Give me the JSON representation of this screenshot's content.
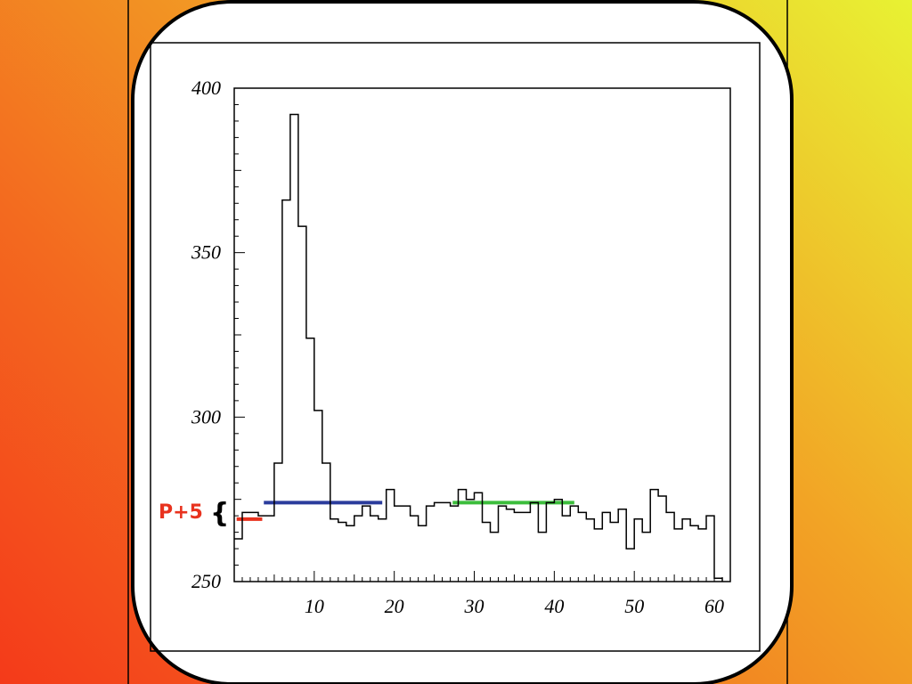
{
  "colors": {
    "background_bottom_left": "#f43a1a",
    "background_top_right": "#e8f233",
    "panel": "#ffffff",
    "axis": "#000000",
    "annotation": "#e8321e",
    "blue_level": "#2b3c9c",
    "green_level": "#3cbd3c",
    "red_level": "#e8321e"
  },
  "annotation": {
    "label": "P+5",
    "brace": "{"
  },
  "chart_data": {
    "type": "histogram",
    "title": "",
    "xlabel": "",
    "ylabel": "",
    "xlim": [
      0,
      62
    ],
    "ylim": [
      250,
      400
    ],
    "xticks": [
      10,
      20,
      30,
      40,
      50,
      60
    ],
    "yticks": [
      250,
      300,
      350,
      400
    ],
    "bin_width": 1,
    "bin_start": 0,
    "values": [
      263,
      271,
      271,
      270,
      270,
      286,
      366,
      392,
      358,
      324,
      302,
      286,
      269,
      268,
      267,
      270,
      273,
      270,
      269,
      278,
      273,
      273,
      270,
      267,
      273,
      274,
      274,
      273,
      278,
      275,
      277,
      268,
      265,
      273,
      272,
      271,
      271,
      274,
      265,
      274,
      275,
      270,
      273,
      271,
      269,
      266,
      271,
      268,
      272,
      260,
      269,
      265,
      278,
      276,
      271,
      266,
      269,
      267,
      266,
      270,
      251
    ],
    "reference_levels": [
      {
        "color": "red",
        "y": 269,
        "x_start": 0.3,
        "x_end": 3.5
      },
      {
        "color": "blue",
        "y": 274,
        "x_start": 3.7,
        "x_end": 18.5
      },
      {
        "color": "green",
        "y": 274,
        "x_start": 27.3,
        "x_end": 42.5
      }
    ]
  }
}
